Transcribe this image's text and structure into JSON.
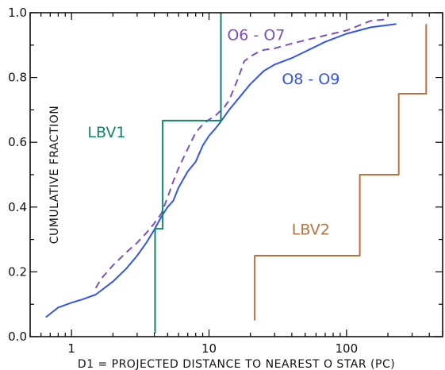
{
  "chart_data": {
    "type": "line",
    "xlabel": "D1 = PROJECTED DISTANCE TO NEAREST O STAR (PC)",
    "ylabel": "CUMULATIVE FRACTION",
    "xscale": "log",
    "xlim": [
      0.5,
      500
    ],
    "ylim": [
      0.0,
      1.0
    ],
    "x_ticks": [
      1,
      10,
      100
    ],
    "x_tick_labels": [
      "1",
      "10",
      "100"
    ],
    "y_ticks": [
      0.0,
      0.2,
      0.4,
      0.6,
      0.8,
      1.0
    ],
    "y_tick_labels": [
      "0.0",
      "0.2",
      "0.4",
      "0.6",
      "0.8",
      "1.0"
    ],
    "grid": false,
    "series": [
      {
        "name": "O6 - O7",
        "color": "#7b4fc4",
        "style": "dashed",
        "x": [
          1.5,
          1.65,
          2.0,
          2.5,
          3.0,
          3.5,
          4.0,
          4.5,
          5.0,
          5.5,
          6.0,
          7.0,
          8.0,
          9.0,
          10.0,
          11.0,
          12.0,
          13.0,
          14.0,
          15.0,
          16.0,
          17.0,
          18.0,
          20.0,
          22.0,
          25.0,
          30.0,
          40.0,
          50.0,
          70.0,
          100.0,
          150.0,
          200.0
        ],
        "y": [
          0.15,
          0.18,
          0.22,
          0.26,
          0.29,
          0.32,
          0.35,
          0.38,
          0.43,
          0.48,
          0.52,
          0.58,
          0.63,
          0.655,
          0.67,
          0.68,
          0.695,
          0.71,
          0.73,
          0.76,
          0.79,
          0.82,
          0.85,
          0.865,
          0.875,
          0.885,
          0.89,
          0.905,
          0.915,
          0.93,
          0.945,
          0.975,
          0.98
        ]
      },
      {
        "name": "O8 - O9",
        "color": "#3355ee",
        "style": "solid",
        "x": [
          0.65,
          0.8,
          1.0,
          1.2,
          1.5,
          2.0,
          2.5,
          3.0,
          3.5,
          4.0,
          4.5,
          5.0,
          5.5,
          6.0,
          7.0,
          8.0,
          9.0,
          10.0,
          11.0,
          12.0,
          14.0,
          16.0,
          20.0,
          25.0,
          30.0,
          40.0,
          50.0,
          70.0,
          100.0,
          150.0,
          230.0
        ],
        "y": [
          0.06,
          0.09,
          0.105,
          0.115,
          0.13,
          0.17,
          0.21,
          0.25,
          0.29,
          0.33,
          0.37,
          0.4,
          0.42,
          0.46,
          0.51,
          0.54,
          0.59,
          0.62,
          0.64,
          0.66,
          0.7,
          0.73,
          0.78,
          0.82,
          0.84,
          0.86,
          0.88,
          0.91,
          0.935,
          0.955,
          0.965
        ]
      },
      {
        "name": "LBV1",
        "color": "#13866a",
        "style": "step",
        "x": [
          4.05,
          4.05,
          4.6,
          4.6,
          12.2,
          12.2
        ],
        "y": [
          0.01,
          0.333,
          0.333,
          0.667,
          0.667,
          1.0
        ]
      },
      {
        "name": "LBV2",
        "color": "#b77243",
        "style": "step",
        "x": [
          21.5,
          21.5,
          125.0,
          125.0,
          240.0,
          240.0,
          380.0,
          380.0
        ],
        "y": [
          0.05,
          0.25,
          0.25,
          0.5,
          0.5,
          0.75,
          0.75,
          0.965
        ]
      }
    ],
    "annotations": [
      {
        "text": "O6 - O7",
        "series": 0,
        "at_x": 22,
        "at_y": 0.915,
        "color": "#7b4fc4"
      },
      {
        "text": "O8 - O9",
        "series": 1,
        "at_x": 55,
        "at_y": 0.78,
        "color": "#3355ee"
      },
      {
        "text": "LBV1",
        "series": 2,
        "at_x": 1.8,
        "at_y": 0.615,
        "color": "#13866a"
      },
      {
        "text": "LBV2",
        "series": 3,
        "at_x": 55,
        "at_y": 0.315,
        "color": "#b77243"
      }
    ]
  }
}
